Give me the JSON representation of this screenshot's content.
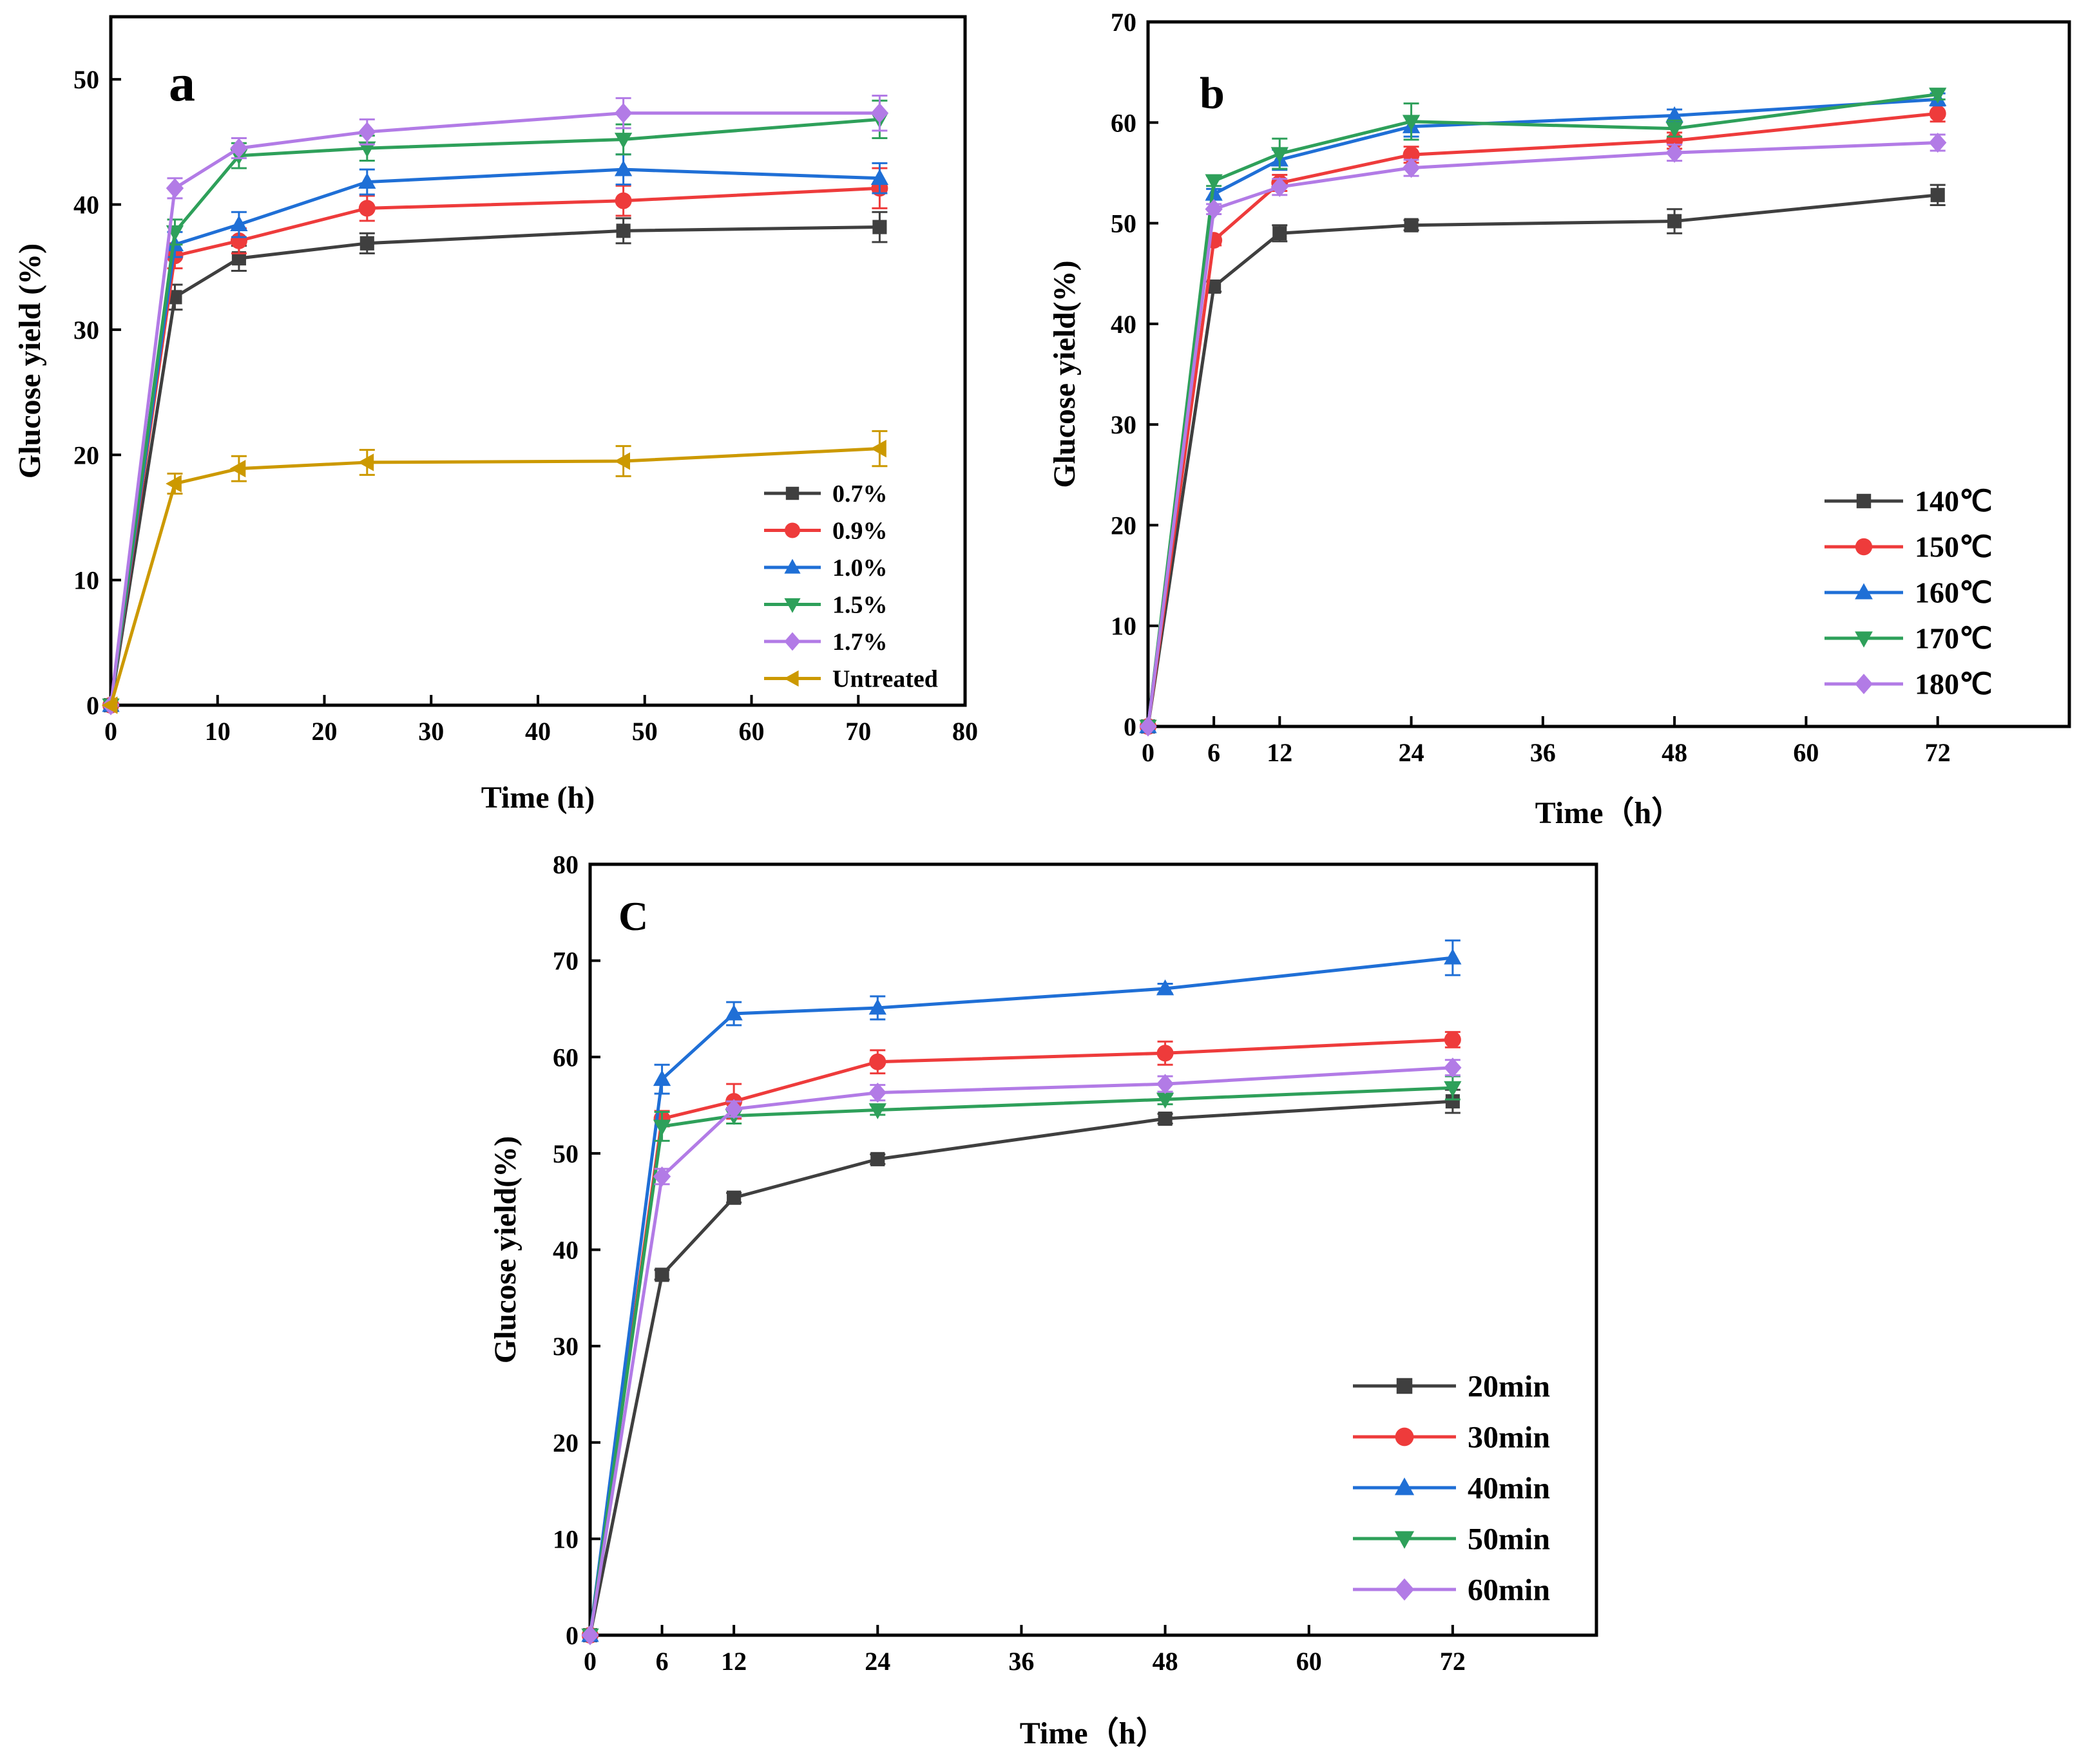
{
  "chart_data": [
    {
      "panel_label": "a",
      "type": "line",
      "xlabel": "Time (h)",
      "ylabel": "Glucose yield (%)",
      "xlim": [
        0,
        80
      ],
      "ylim": [
        0,
        55
      ],
      "xticks": [
        0,
        10,
        20,
        30,
        40,
        50,
        60,
        70,
        80
      ],
      "yticks": [
        0,
        10,
        20,
        30,
        40,
        50
      ],
      "legend_position": "lower-right",
      "x": [
        0,
        6,
        12,
        24,
        48,
        72
      ],
      "series": [
        {
          "name": "0.7%",
          "color": "#3f3f3f",
          "marker": "square",
          "values": [
            0,
            32.6,
            35.7,
            36.9,
            37.9,
            38.2
          ],
          "errors": [
            0,
            1.0,
            1.0,
            0.8,
            1.0,
            1.2
          ]
        },
        {
          "name": "0.9%",
          "color": "#ee3b3b",
          "marker": "circle",
          "values": [
            0,
            35.9,
            37.1,
            39.7,
            40.3,
            41.3
          ],
          "errors": [
            0,
            1.0,
            1.0,
            1.0,
            1.2,
            1.6
          ]
        },
        {
          "name": "1.0%",
          "color": "#1f6fd6",
          "marker": "triangle-up",
          "values": [
            0,
            36.8,
            38.4,
            41.8,
            42.8,
            42.1
          ],
          "errors": [
            0,
            1.0,
            1.0,
            1.0,
            1.2,
            1.2
          ]
        },
        {
          "name": "1.5%",
          "color": "#2ea05a",
          "marker": "triangle-down",
          "values": [
            0,
            37.8,
            43.9,
            44.5,
            45.2,
            46.8
          ],
          "errors": [
            0,
            1.0,
            1.0,
            1.0,
            1.2,
            1.5
          ]
        },
        {
          "name": "1.7%",
          "color": "#b27be6",
          "marker": "diamond",
          "values": [
            0,
            41.3,
            44.5,
            45.8,
            47.3,
            47.3
          ],
          "errors": [
            0,
            0.8,
            0.8,
            1.0,
            1.2,
            1.4
          ]
        },
        {
          "name": "Untreated",
          "color": "#cc9900",
          "marker": "triangle-left",
          "values": [
            0,
            17.7,
            18.9,
            19.4,
            19.5,
            20.5
          ],
          "errors": [
            0,
            0.8,
            1.0,
            1.0,
            1.2,
            1.4
          ]
        }
      ]
    },
    {
      "panel_label": "b",
      "type": "line",
      "xlabel": "Time（h）",
      "ylabel": "Glucose yield(%)",
      "xlim": [
        0,
        84
      ],
      "ylim": [
        0,
        70
      ],
      "xticks": [
        0,
        6,
        12,
        24,
        36,
        48,
        60,
        72
      ],
      "yticks": [
        0,
        10,
        20,
        30,
        40,
        50,
        60,
        70
      ],
      "legend_position": "lower-right",
      "x": [
        0,
        6,
        12,
        24,
        48,
        72
      ],
      "series": [
        {
          "name": "140℃",
          "color": "#3f3f3f",
          "marker": "square",
          "values": [
            0,
            43.7,
            49.0,
            49.8,
            50.2,
            52.8
          ],
          "errors": [
            0,
            0.5,
            0.8,
            0.5,
            1.2,
            1.0
          ]
        },
        {
          "name": "150℃",
          "color": "#ee3b3b",
          "marker": "circle",
          "values": [
            0,
            48.3,
            54.0,
            56.8,
            58.2,
            60.9
          ],
          "errors": [
            0,
            0.5,
            0.8,
            0.8,
            0.8,
            0.8
          ]
        },
        {
          "name": "160℃",
          "color": "#1f6fd6",
          "marker": "triangle-up",
          "values": [
            0,
            52.9,
            56.3,
            59.6,
            60.7,
            62.3
          ],
          "errors": [
            0,
            0.5,
            1.0,
            1.0,
            0.6,
            0.6
          ]
        },
        {
          "name": "170℃",
          "color": "#2ea05a",
          "marker": "triangle-down",
          "values": [
            0,
            54.2,
            56.9,
            60.1,
            59.4,
            62.8
          ],
          "errors": [
            0,
            0.5,
            1.5,
            1.8,
            0.8,
            0.5
          ]
        },
        {
          "name": "180℃",
          "color": "#b27be6",
          "marker": "diamond",
          "values": [
            0,
            51.4,
            53.6,
            55.5,
            57.0,
            58.0
          ],
          "errors": [
            0,
            0.5,
            0.8,
            0.8,
            0.8,
            0.8
          ]
        }
      ]
    },
    {
      "panel_label": "C",
      "type": "line",
      "xlabel": "Time（h）",
      "ylabel": "Glucose yield(%)",
      "xlim": [
        0,
        84
      ],
      "ylim": [
        0,
        80
      ],
      "xticks": [
        0,
        6,
        12,
        24,
        36,
        48,
        60,
        72
      ],
      "yticks": [
        0,
        10,
        20,
        30,
        40,
        50,
        60,
        70,
        80
      ],
      "legend_position": "lower-right",
      "x": [
        0,
        6,
        12,
        24,
        48,
        72
      ],
      "series": [
        {
          "name": "20min",
          "color": "#3f3f3f",
          "marker": "square",
          "values": [
            0,
            37.4,
            45.4,
            49.4,
            53.6,
            55.4
          ],
          "errors": [
            0,
            0.5,
            0.5,
            0.5,
            0.5,
            1.2
          ]
        },
        {
          "name": "30min",
          "color": "#ee3b3b",
          "marker": "circle",
          "values": [
            0,
            53.6,
            55.4,
            59.5,
            60.4,
            61.8
          ],
          "errors": [
            0,
            0.8,
            1.8,
            1.2,
            1.2,
            0.8
          ]
        },
        {
          "name": "40min",
          "color": "#1f6fd6",
          "marker": "triangle-up",
          "values": [
            0,
            57.7,
            64.5,
            65.1,
            67.1,
            70.3
          ],
          "errors": [
            0,
            1.5,
            1.2,
            1.2,
            0.5,
            1.8
          ]
        },
        {
          "name": "50min",
          "color": "#2ea05a",
          "marker": "triangle-down",
          "values": [
            0,
            52.8,
            53.9,
            54.5,
            55.6,
            56.8
          ],
          "errors": [
            0,
            1.5,
            0.8,
            0.5,
            0.5,
            1.2
          ]
        },
        {
          "name": "60min",
          "color": "#b27be6",
          "marker": "diamond",
          "values": [
            0,
            47.6,
            54.6,
            56.3,
            57.2,
            58.9
          ],
          "errors": [
            0,
            0.8,
            0.8,
            0.8,
            0.8,
            0.8
          ]
        }
      ]
    }
  ]
}
